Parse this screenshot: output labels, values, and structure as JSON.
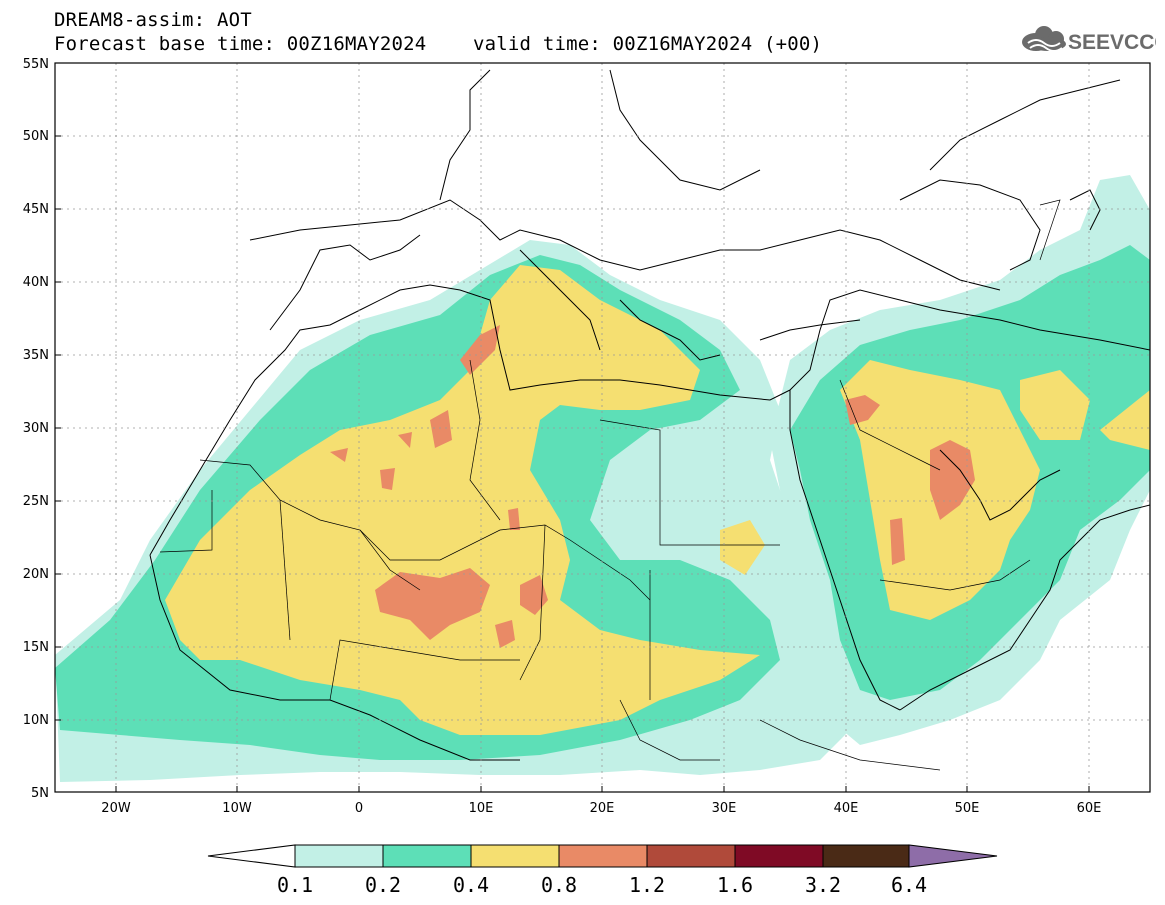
{
  "header": {
    "line1": "DREAM8-assim: AOT",
    "line2": "Forecast base time: 00Z16MAY2024    valid time: 00Z16MAY2024 (+00)"
  },
  "logo": {
    "text": "SEEVCCC",
    "icon": "cloud-icon"
  },
  "map": {
    "lon_range": [
      -25,
      65
    ],
    "lat_range": [
      5,
      55
    ],
    "lat_ticks": [
      "5N",
      "10N",
      "15N",
      "20N",
      "25N",
      "30N",
      "35N",
      "40N",
      "45N",
      "50N",
      "55N"
    ],
    "lon_ticks": [
      "20W",
      "10W",
      "0",
      "10E",
      "20E",
      "30E",
      "40E",
      "50E",
      "60E"
    ]
  },
  "colorbar": {
    "labels": [
      "0.1",
      "0.2",
      "0.4",
      "0.8",
      "1.2",
      "1.6",
      "3.2",
      "6.4"
    ],
    "colors": [
      "#c2f0e6",
      "#5ddfb7",
      "#f5df71",
      "#e98a66",
      "#b04a3a",
      "#7f0a25",
      "#4a2a16",
      "#8e6da8"
    ]
  }
}
